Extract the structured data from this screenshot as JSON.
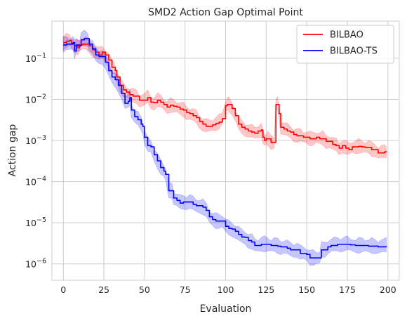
{
  "chart_data": {
    "type": "line",
    "title": "SMD2 Action Gap Optimal Point",
    "xlabel": "Evaluation",
    "ylabel": "Action gap",
    "xlim": [
      -7,
      207
    ],
    "ylim": [
      4e-07,
      0.8
    ],
    "yscale": "log",
    "grid": true,
    "legend_position": "top-right",
    "x_ticks": [
      0,
      25,
      50,
      75,
      100,
      125,
      150,
      175,
      200
    ],
    "x_tick_labels": [
      "0",
      "25",
      "50",
      "75",
      "100",
      "125",
      "150",
      "175",
      "200"
    ],
    "y_ticks": [
      1e-06,
      1e-05,
      0.0001,
      0.001,
      0.01,
      0.1
    ],
    "y_tick_labels": [
      {
        "base": "10",
        "exp": "−6"
      },
      {
        "base": "10",
        "exp": "−5"
      },
      {
        "base": "10",
        "exp": "−4"
      },
      {
        "base": "10",
        "exp": "−3"
      },
      {
        "base": "10",
        "exp": "−2"
      },
      {
        "base": "10",
        "exp": "−1"
      }
    ],
    "series": [
      {
        "name": "BILBAO",
        "color": "#ff0000",
        "band_color": "#ff0000",
        "points": [
          [
            0,
            0.24
          ],
          [
            2,
            0.26
          ],
          [
            4,
            0.27
          ],
          [
            5,
            0.23
          ],
          [
            7,
            0.2
          ],
          [
            9,
            0.18
          ],
          [
            10,
            0.21
          ],
          [
            12,
            0.22
          ],
          [
            14,
            0.22
          ],
          [
            16,
            0.2
          ],
          [
            18,
            0.16
          ],
          [
            20,
            0.14
          ],
          [
            22,
            0.12
          ],
          [
            24,
            0.14
          ],
          [
            26,
            0.12
          ],
          [
            28,
            0.09
          ],
          [
            30,
            0.06
          ],
          [
            32,
            0.05
          ],
          [
            33,
            0.035
          ],
          [
            35,
            0.022
          ],
          [
            37,
            0.017
          ],
          [
            39,
            0.015
          ],
          [
            41,
            0.013
          ],
          [
            43,
            0.012
          ],
          [
            45,
            0.012
          ],
          [
            47,
            0.0095
          ],
          [
            50,
            0.0095
          ],
          [
            52,
            0.011
          ],
          [
            54,
            0.0085
          ],
          [
            56,
            0.0083
          ],
          [
            58,
            0.0095
          ],
          [
            60,
            0.0085
          ],
          [
            62,
            0.0075
          ],
          [
            64,
            0.0065
          ],
          [
            66,
            0.0072
          ],
          [
            68,
            0.0068
          ],
          [
            70,
            0.0065
          ],
          [
            72,
            0.0058
          ],
          [
            74,
            0.0055
          ],
          [
            76,
            0.0048
          ],
          [
            78,
            0.0045
          ],
          [
            80,
            0.004
          ],
          [
            82,
            0.0036
          ],
          [
            84,
            0.0029
          ],
          [
            86,
            0.0025
          ],
          [
            88,
            0.0022
          ],
          [
            90,
            0.0022
          ],
          [
            92,
            0.0024
          ],
          [
            94,
            0.0026
          ],
          [
            96,
            0.0028
          ],
          [
            98,
            0.0034
          ],
          [
            100,
            0.007
          ],
          [
            101,
            0.0075
          ],
          [
            102,
            0.0075
          ],
          [
            104,
            0.006
          ],
          [
            106,
            0.004
          ],
          [
            108,
            0.0025
          ],
          [
            110,
            0.0021
          ],
          [
            112,
            0.0019
          ],
          [
            114,
            0.0017
          ],
          [
            116,
            0.0016
          ],
          [
            118,
            0.0015
          ],
          [
            120,
            0.0017
          ],
          [
            122,
            0.0018
          ],
          [
            123,
            0.0012
          ],
          [
            124,
            0.001
          ],
          [
            125,
            0.0011
          ],
          [
            126,
            0.0011
          ],
          [
            128,
            0.0009
          ],
          [
            130,
            0.0009
          ],
          [
            131,
            0.0075
          ],
          [
            132,
            0.0075
          ],
          [
            133,
            0.0045
          ],
          [
            134,
            0.0021
          ],
          [
            136,
            0.0019
          ],
          [
            138,
            0.0017
          ],
          [
            140,
            0.0016
          ],
          [
            142,
            0.0014
          ],
          [
            144,
            0.0013
          ],
          [
            146,
            0.0013
          ],
          [
            148,
            0.0012
          ],
          [
            150,
            0.0012
          ],
          [
            152,
            0.0011
          ],
          [
            154,
            0.0011
          ],
          [
            156,
            0.0012
          ],
          [
            158,
            0.0011
          ],
          [
            160,
            0.0011
          ],
          [
            162,
            0.00095
          ],
          [
            164,
            0.00095
          ],
          [
            166,
            0.0008
          ],
          [
            168,
            0.00075
          ],
          [
            170,
            0.00065
          ],
          [
            172,
            0.00075
          ],
          [
            174,
            0.00065
          ],
          [
            176,
            0.0006
          ],
          [
            178,
            0.0007
          ],
          [
            180,
            0.0007
          ],
          [
            182,
            0.00072
          ],
          [
            184,
            0.0007
          ],
          [
            186,
            0.00068
          ],
          [
            188,
            0.00068
          ],
          [
            190,
            0.0006
          ],
          [
            192,
            0.0006
          ],
          [
            194,
            0.0005
          ],
          [
            196,
            0.0005
          ],
          [
            198,
            0.00053
          ],
          [
            199,
            0.00055
          ]
        ],
        "band_factor_lower": 0.72,
        "band_factor_upper": 1.4
      },
      {
        "name": "BILBAO-TS",
        "color": "#0000ff",
        "band_color": "#0000ff",
        "points": [
          [
            0,
            0.21
          ],
          [
            2,
            0.22
          ],
          [
            4,
            0.22
          ],
          [
            6,
            0.24
          ],
          [
            7,
            0.15
          ],
          [
            8,
            0.21
          ],
          [
            10,
            0.2
          ],
          [
            11,
            0.28
          ],
          [
            13,
            0.3
          ],
          [
            15,
            0.3
          ],
          [
            16,
            0.22
          ],
          [
            18,
            0.17
          ],
          [
            20,
            0.12
          ],
          [
            22,
            0.11
          ],
          [
            24,
            0.11
          ],
          [
            26,
            0.08
          ],
          [
            28,
            0.05
          ],
          [
            30,
            0.035
          ],
          [
            32,
            0.03
          ],
          [
            34,
            0.022
          ],
          [
            36,
            0.014
          ],
          [
            38,
            0.008
          ],
          [
            40,
            0.009
          ],
          [
            41,
            0.011
          ],
          [
            42,
            0.0055
          ],
          [
            44,
            0.0038
          ],
          [
            46,
            0.0032
          ],
          [
            48,
            0.0025
          ],
          [
            49,
            0.0022
          ],
          [
            50,
            0.0012
          ],
          [
            52,
            0.00075
          ],
          [
            54,
            0.0007
          ],
          [
            56,
            0.00045
          ],
          [
            58,
            0.00032
          ],
          [
            60,
            0.00022
          ],
          [
            62,
            0.00018
          ],
          [
            63,
            0.00015
          ],
          [
            65,
            6e-05
          ],
          [
            67,
            6e-05
          ],
          [
            68,
            4e-05
          ],
          [
            70,
            3.5e-05
          ],
          [
            72,
            3e-05
          ],
          [
            74,
            3.2e-05
          ],
          [
            76,
            3.2e-05
          ],
          [
            78,
            3.2e-05
          ],
          [
            80,
            2.8e-05
          ],
          [
            82,
            2.6e-05
          ],
          [
            84,
            2.6e-05
          ],
          [
            86,
            2.4e-05
          ],
          [
            88,
            2e-05
          ],
          [
            90,
            1.4e-05
          ],
          [
            92,
            1.2e-05
          ],
          [
            94,
            1.1e-05
          ],
          [
            96,
            1.1e-05
          ],
          [
            98,
            1.1e-05
          ],
          [
            100,
            8.2e-06
          ],
          [
            102,
            7.3e-06
          ],
          [
            104,
            7e-06
          ],
          [
            106,
            6.2e-06
          ],
          [
            108,
            5.2e-06
          ],
          [
            110,
            4.5e-06
          ],
          [
            112,
            4.4e-06
          ],
          [
            114,
            3.7e-06
          ],
          [
            116,
            3.4e-06
          ],
          [
            118,
            2.8e-06
          ],
          [
            120,
            2.8e-06
          ],
          [
            122,
            3e-06
          ],
          [
            124,
            3e-06
          ],
          [
            126,
            3e-06
          ],
          [
            128,
            2.8e-06
          ],
          [
            130,
            2.8e-06
          ],
          [
            132,
            2.7e-06
          ],
          [
            134,
            2.6e-06
          ],
          [
            136,
            2.6e-06
          ],
          [
            138,
            2.4e-06
          ],
          [
            140,
            2.2e-06
          ],
          [
            142,
            2.2e-06
          ],
          [
            144,
            2.2e-06
          ],
          [
            146,
            1.8e-06
          ],
          [
            148,
            1.8e-06
          ],
          [
            150,
            1.7e-06
          ],
          [
            152,
            1.4e-06
          ],
          [
            154,
            1.4e-06
          ],
          [
            156,
            1.4e-06
          ],
          [
            158,
            1.4e-06
          ],
          [
            159,
            2.2e-06
          ],
          [
            161,
            2.2e-06
          ],
          [
            163,
            2.6e-06
          ],
          [
            165,
            2.8e-06
          ],
          [
            167,
            2.8e-06
          ],
          [
            169,
            3e-06
          ],
          [
            171,
            3e-06
          ],
          [
            173,
            3e-06
          ],
          [
            175,
            3e-06
          ],
          [
            177,
            2.9e-06
          ],
          [
            180,
            2.8e-06
          ],
          [
            182,
            2.8e-06
          ],
          [
            184,
            2.8e-06
          ],
          [
            186,
            2.8e-06
          ],
          [
            188,
            2.7e-06
          ],
          [
            190,
            2.7e-06
          ],
          [
            192,
            2.7e-06
          ],
          [
            194,
            2.6e-06
          ],
          [
            196,
            2.6e-06
          ],
          [
            199,
            2.7e-06
          ]
        ],
        "band_factor_lower": 0.7,
        "band_factor_upper": 1.45
      }
    ]
  }
}
